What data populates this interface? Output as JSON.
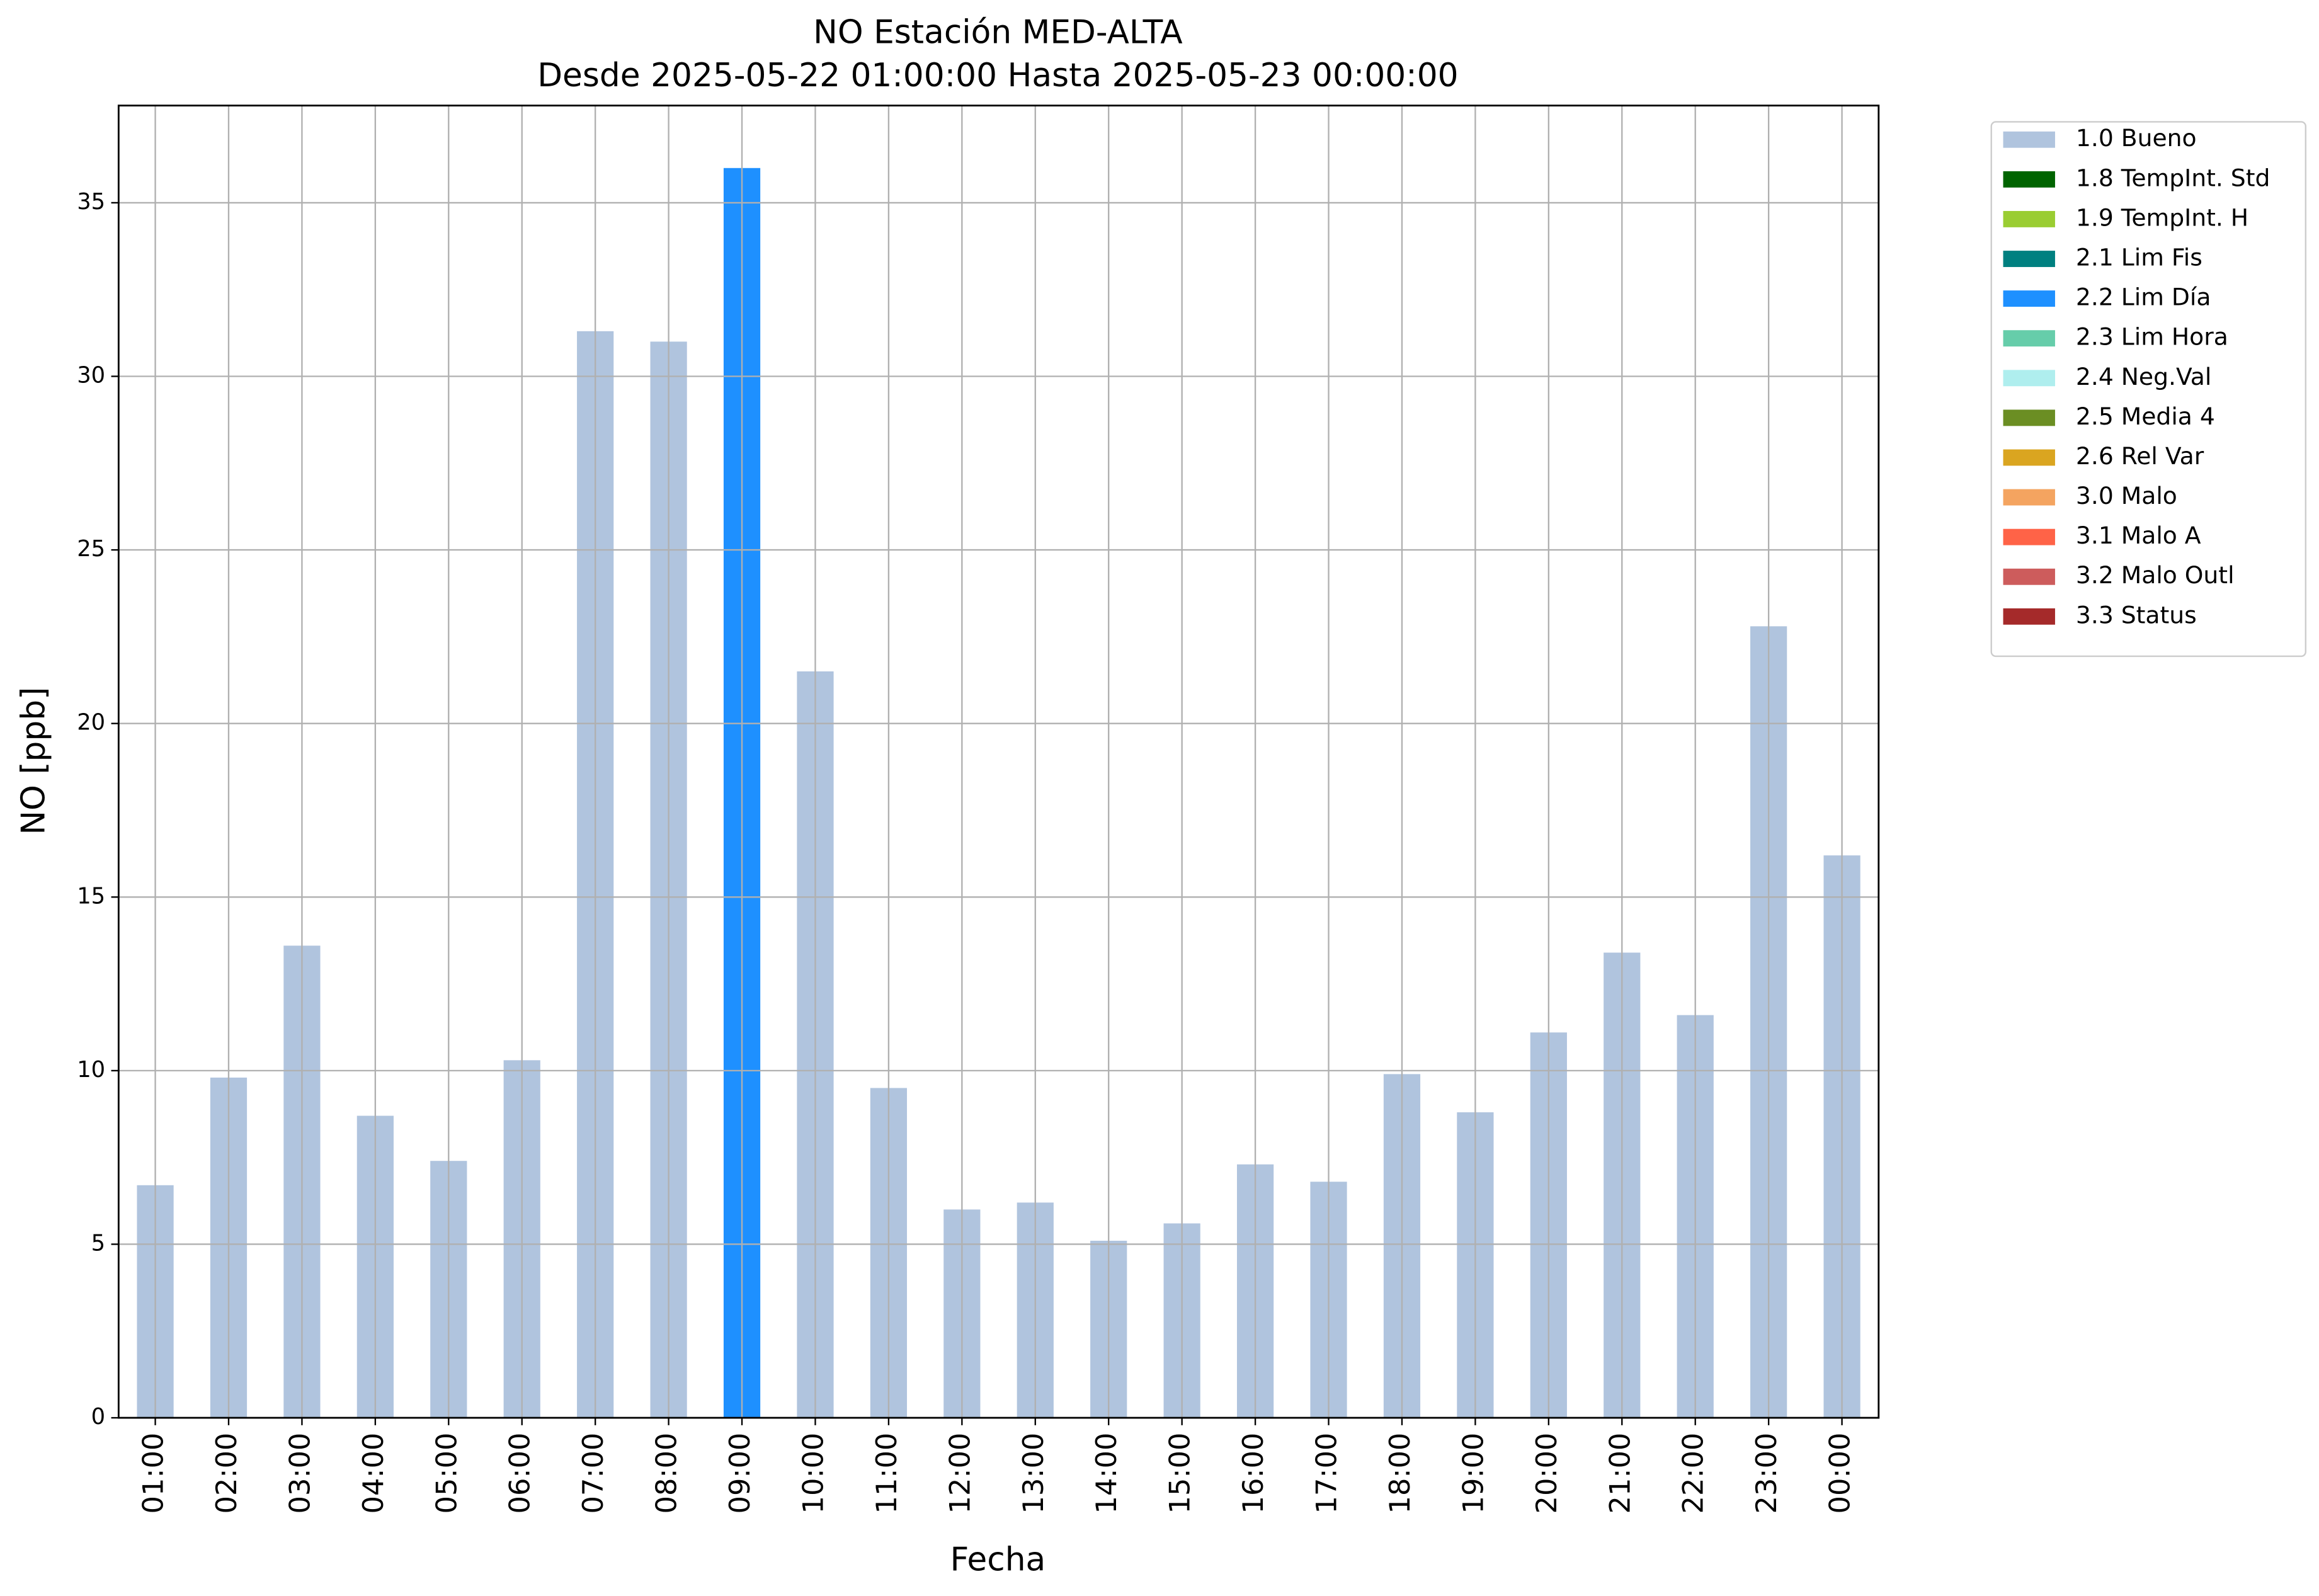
{
  "chart_data": {
    "type": "bar",
    "title": "NO Estación MED-ALTA",
    "subtitle": "Desde 2025-05-22 01:00:00 Hasta 2025-05-23 00:00:00",
    "x_label": "Fecha",
    "y_label": "NO [ppb]",
    "categories": [
      "01:00",
      "02:00",
      "03:00",
      "04:00",
      "05:00",
      "06:00",
      "07:00",
      "08:00",
      "09:00",
      "10:00",
      "11:00",
      "12:00",
      "13:00",
      "14:00",
      "15:00",
      "16:00",
      "17:00",
      "18:00",
      "19:00",
      "20:00",
      "21:00",
      "22:00",
      "23:00",
      "00:00"
    ],
    "series": [
      {
        "name": "1.0 Bueno",
        "color": "#b0c4de",
        "values": [
          6.7,
          9.8,
          13.6,
          8.7,
          7.4,
          10.3,
          31.3,
          31.0,
          null,
          21.5,
          9.5,
          6.0,
          6.2,
          5.1,
          5.6,
          7.3,
          6.8,
          9.9,
          8.8,
          11.1,
          13.4,
          11.6,
          22.8,
          16.2
        ]
      },
      {
        "name": "1.8 TempInt. Std",
        "color": "#006400",
        "values": [
          null,
          null,
          null,
          null,
          null,
          null,
          null,
          null,
          null,
          null,
          null,
          null,
          null,
          null,
          null,
          null,
          null,
          null,
          null,
          null,
          null,
          null,
          null,
          null
        ]
      },
      {
        "name": "1.9 TempInt. H",
        "color": "#9acd32",
        "values": [
          null,
          null,
          null,
          null,
          null,
          null,
          null,
          null,
          null,
          null,
          null,
          null,
          null,
          null,
          null,
          null,
          null,
          null,
          null,
          null,
          null,
          null,
          null,
          null
        ]
      },
      {
        "name": "2.1 Lim Fis",
        "color": "#008080",
        "values": [
          null,
          null,
          null,
          null,
          null,
          null,
          null,
          null,
          null,
          null,
          null,
          null,
          null,
          null,
          null,
          null,
          null,
          null,
          null,
          null,
          null,
          null,
          null,
          null
        ]
      },
      {
        "name": "2.2 Lim Día",
        "color": "#1e90ff",
        "values": [
          null,
          null,
          null,
          null,
          null,
          null,
          null,
          null,
          36.0,
          null,
          null,
          null,
          null,
          null,
          null,
          null,
          null,
          null,
          null,
          null,
          null,
          null,
          null,
          null
        ]
      },
      {
        "name": "2.3 Lim Hora",
        "color": "#66cdaa",
        "values": [
          null,
          null,
          null,
          null,
          null,
          null,
          null,
          null,
          null,
          null,
          null,
          null,
          null,
          null,
          null,
          null,
          null,
          null,
          null,
          null,
          null,
          null,
          null,
          null
        ]
      },
      {
        "name": "2.4 Neg.Val",
        "color": "#afeeee",
        "values": [
          null,
          null,
          null,
          null,
          null,
          null,
          null,
          null,
          null,
          null,
          null,
          null,
          null,
          null,
          null,
          null,
          null,
          null,
          null,
          null,
          null,
          null,
          null,
          null
        ]
      },
      {
        "name": "2.5 Media 4",
        "color": "#6b8e23",
        "values": [
          null,
          null,
          null,
          null,
          null,
          null,
          null,
          null,
          null,
          null,
          null,
          null,
          null,
          null,
          null,
          null,
          null,
          null,
          null,
          null,
          null,
          null,
          null,
          null
        ]
      },
      {
        "name": "2.6 Rel Var",
        "color": "#daa520",
        "values": [
          null,
          null,
          null,
          null,
          null,
          null,
          null,
          null,
          null,
          null,
          null,
          null,
          null,
          null,
          null,
          null,
          null,
          null,
          null,
          null,
          null,
          null,
          null,
          null
        ]
      },
      {
        "name": "3.0 Malo",
        "color": "#f4a460",
        "values": [
          null,
          null,
          null,
          null,
          null,
          null,
          null,
          null,
          null,
          null,
          null,
          null,
          null,
          null,
          null,
          null,
          null,
          null,
          null,
          null,
          null,
          null,
          null,
          null
        ]
      },
      {
        "name": "3.1 Malo A",
        "color": "#ff6347",
        "values": [
          null,
          null,
          null,
          null,
          null,
          null,
          null,
          null,
          null,
          null,
          null,
          null,
          null,
          null,
          null,
          null,
          null,
          null,
          null,
          null,
          null,
          null,
          null,
          null
        ]
      },
      {
        "name": "3.2 Malo Outl",
        "color": "#cd5c5c",
        "values": [
          null,
          null,
          null,
          null,
          null,
          null,
          null,
          null,
          null,
          null,
          null,
          null,
          null,
          null,
          null,
          null,
          null,
          null,
          null,
          null,
          null,
          null,
          null,
          null
        ]
      },
      {
        "name": "3.3 Status",
        "color": "#a52a2a",
        "values": [
          null,
          null,
          null,
          null,
          null,
          null,
          null,
          null,
          null,
          null,
          null,
          null,
          null,
          null,
          null,
          null,
          null,
          null,
          null,
          null,
          null,
          null,
          null,
          null
        ]
      }
    ],
    "ylim": [
      0,
      37.8
    ],
    "yticks": [
      0,
      5,
      10,
      15,
      20,
      25,
      30,
      35
    ],
    "grid": true,
    "legend": "outside-upper-right"
  }
}
